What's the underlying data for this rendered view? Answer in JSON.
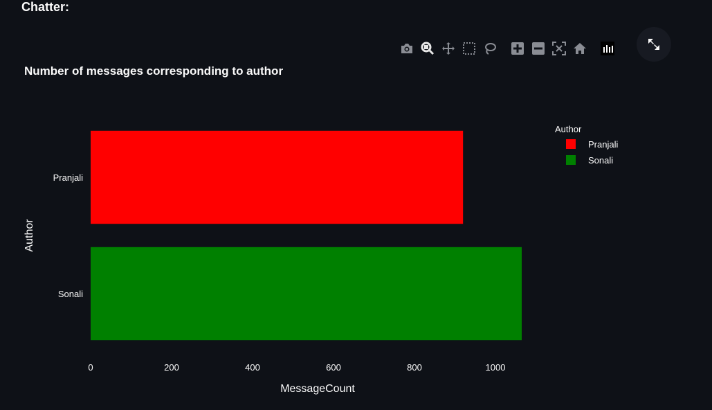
{
  "page": {
    "header": "Chatter:"
  },
  "modebar": {
    "icons": [
      "camera-icon",
      "zoom-icon",
      "pan-icon",
      "box-select-icon",
      "lasso-icon",
      "zoom-in-icon",
      "zoom-out-icon",
      "autoscale-icon",
      "reset-axes-icon",
      "plotly-logo-icon"
    ],
    "fullscreen_icon": "fullscreen-icon"
  },
  "chart_data": {
    "type": "bar",
    "orientation": "horizontal",
    "title": "Number of messages corresponding to author",
    "xlabel": "MessageCount",
    "ylabel": "Author",
    "xlim": [
      0,
      1065
    ],
    "xticks": [
      0,
      200,
      400,
      600,
      800,
      1000
    ],
    "categories": [
      "Pranjali",
      "Sonali"
    ],
    "series": [
      {
        "name": "Pranjali",
        "color": "#ff0000",
        "values": [
          920,
          null
        ]
      },
      {
        "name": "Sonali",
        "color": "#008000",
        "values": [
          null,
          1065
        ]
      }
    ],
    "legend": {
      "title": "Author",
      "placement": "top-right"
    },
    "grid": false
  }
}
